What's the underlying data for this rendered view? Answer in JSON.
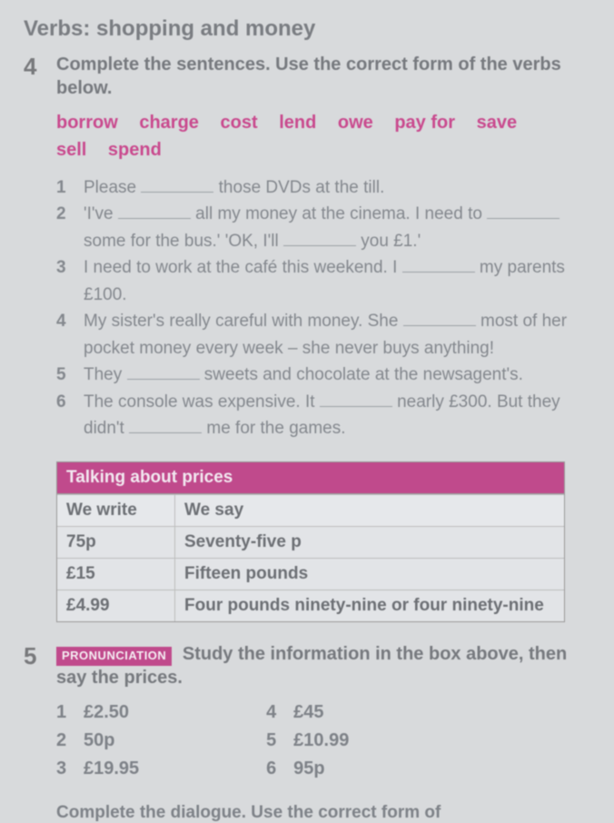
{
  "page_title": "Verbs: shopping and money",
  "exercise4": {
    "number": "4",
    "instruction": "Complete the sentences. Use the correct form of the verbs below.",
    "wordbank": [
      "borrow",
      "charge",
      "cost",
      "lend",
      "owe",
      "pay for",
      "save",
      "sell",
      "spend"
    ],
    "sentences": [
      {
        "n": "1",
        "text_before": "Please ",
        "text_after": " those DVDs at the till."
      },
      {
        "n": "2",
        "text": "'I've ____ all my money at the cinema. I need to ____ some for the bus.' 'OK, I'll ____ you £1.'"
      },
      {
        "n": "3",
        "text": "I need to work at the café this weekend. I ____ my parents £100."
      },
      {
        "n": "4",
        "text": "My sister's really careful with money. She ____ most of her pocket money every week – she never buys anything!"
      },
      {
        "n": "5",
        "text": "They ____ sweets and chocolate at the newsagent's."
      },
      {
        "n": "6",
        "text": "The console was expensive. It ____ nearly £300. But they didn't ____ me for the games."
      }
    ]
  },
  "price_table": {
    "title": "Talking about prices",
    "col1_header": "We write",
    "col2_header": "We say",
    "rows": [
      {
        "write": "75p",
        "say": "Seventy-five p"
      },
      {
        "write": "£15",
        "say": "Fifteen pounds"
      },
      {
        "write": "£4.99",
        "say": "Four pounds ninety-nine or four ninety-nine"
      }
    ]
  },
  "exercise5": {
    "number": "5",
    "badge": "PRONUNCIATION",
    "instruction": "Study the information in the box above, then say the prices.",
    "prices_left": [
      {
        "n": "1",
        "v": "£2.50"
      },
      {
        "n": "2",
        "v": "50p"
      },
      {
        "n": "3",
        "v": "£19.95"
      }
    ],
    "prices_right": [
      {
        "n": "4",
        "v": "£45"
      },
      {
        "n": "5",
        "v": "£10.99"
      },
      {
        "n": "6",
        "v": "95p"
      }
    ]
  },
  "cutoff_text": "Complete the dialogue. Use the correct form of",
  "colors": {
    "accent": "#c04a8c",
    "text": "#76797e",
    "bg": "#d8dadc"
  }
}
